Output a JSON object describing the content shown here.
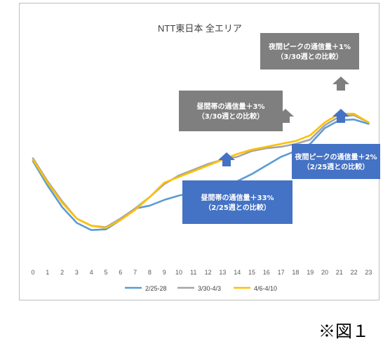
{
  "chart_data": {
    "type": "line",
    "title": "NTT東日本 全エリア",
    "categories": [
      "0",
      "1",
      "2",
      "3",
      "4",
      "5",
      "6",
      "7",
      "8",
      "9",
      "10",
      "11",
      "12",
      "13",
      "14",
      "15",
      "16",
      "17",
      "18",
      "19",
      "20",
      "21",
      "22",
      "23"
    ],
    "series": [
      {
        "name": "2/25-28",
        "color": "#5B9BD5",
        "values": [
          54,
          37,
          22,
          11,
          6,
          6.5,
          13,
          21,
          23,
          27,
          30,
          32,
          35,
          37,
          40,
          45,
          51,
          57,
          61,
          66,
          77,
          82.5,
          83,
          80
        ]
      },
      {
        "name": "3/30-4/3",
        "color": "#A5A5A5",
        "values": [
          56,
          40,
          26,
          14,
          9,
          8,
          14,
          21,
          29,
          38,
          44,
          48,
          52,
          55,
          57,
          61,
          63,
          64,
          66,
          69,
          79,
          85,
          86,
          81
        ]
      },
      {
        "name": "4/6-4/10",
        "color": "#FFC000",
        "values": [
          55,
          39,
          25,
          14,
          9,
          7.5,
          13,
          20,
          29,
          39,
          43,
          47,
          51,
          55,
          59,
          62,
          64,
          66,
          68,
          72,
          81,
          87,
          87,
          81
        ]
      }
    ],
    "ylim": [
      0,
      110
    ],
    "grid": false,
    "legend": "bottom",
    "annotations": [
      {
        "text": "夜間ピークの通信量＋1%\n（3/30週との比較）",
        "style": "gray"
      },
      {
        "text": "昼間帯の通信量＋3%\n（3/30週との比較）",
        "style": "gray"
      },
      {
        "text": "夜間ピークの通信量＋2%\n（2/25週との比較）",
        "style": "blue"
      },
      {
        "text": "昼間帯の通信量＋33%\n（2/25週との比較）",
        "style": "blue"
      }
    ]
  },
  "figure_label": "※図１"
}
